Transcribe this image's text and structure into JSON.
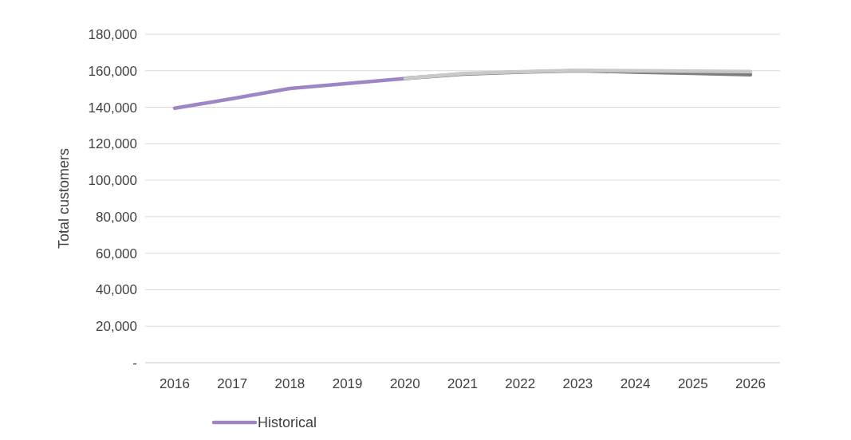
{
  "chart_data": {
    "type": "line",
    "ylabel": "Total customers",
    "categories": [
      "2016",
      "2017",
      "2018",
      "2019",
      "2020",
      "2021",
      "2022",
      "2023",
      "2024",
      "2025",
      "2026"
    ],
    "series": [
      {
        "name": "Historical",
        "color": "#9e86c4",
        "values": [
          139500,
          144700,
          150300,
          153000,
          155800,
          null,
          null,
          null,
          null,
          null,
          null
        ]
      },
      {
        "color": "#7f7f7f",
        "values": [
          null,
          null,
          null,
          null,
          155800,
          158200,
          159200,
          160000,
          159300,
          158600,
          157800
        ]
      },
      {
        "color": "#c9c9c9",
        "values": [
          null,
          null,
          null,
          null,
          155800,
          158500,
          159500,
          160200,
          160000,
          159800,
          159600
        ]
      }
    ],
    "ylim": [
      0,
      180000
    ],
    "yticks": [
      {
        "value": 0,
        "label": "-"
      },
      {
        "value": 20000,
        "label": "20,000"
      },
      {
        "value": 40000,
        "label": "40,000"
      },
      {
        "value": 60000,
        "label": "60,000"
      },
      {
        "value": 80000,
        "label": "80,000"
      },
      {
        "value": 100000,
        "label": "100,000"
      },
      {
        "value": 120000,
        "label": "120,000"
      },
      {
        "value": 140000,
        "label": "140,000"
      },
      {
        "value": 160000,
        "label": "160,000"
      },
      {
        "value": 180000,
        "label": "180,000"
      }
    ],
    "grid": "y",
    "legend": "bottom"
  }
}
